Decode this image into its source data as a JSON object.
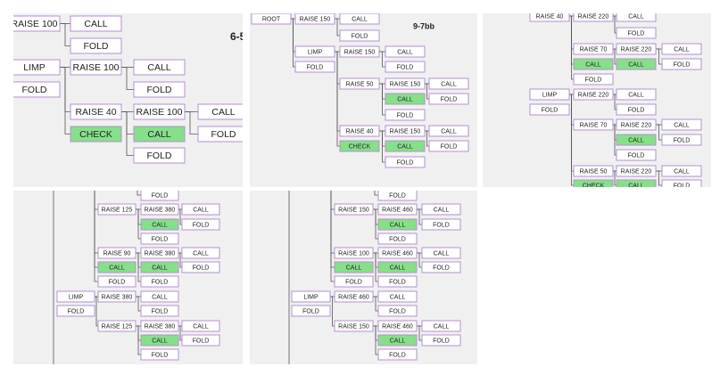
{
  "panels": [
    {
      "heading": "6-5",
      "nodes": [
        {
          "label": "RAISE 100"
        },
        {
          "label": "CALL"
        },
        {
          "label": "FOLD"
        },
        {
          "label": "LIMP"
        },
        {
          "label": "FOLD"
        },
        {
          "label": "RAISE 100"
        },
        {
          "label": "CALL"
        },
        {
          "label": "FOLD"
        },
        {
          "label": "RAISE 40"
        },
        {
          "label": "CHECK",
          "highlighted": true
        },
        {
          "label": "RAISE 100"
        },
        {
          "label": "CALL",
          "highlighted": true
        },
        {
          "label": "FOLD"
        },
        {
          "label": "CALL"
        },
        {
          "label": "FOLD"
        }
      ]
    },
    {
      "heading": "9-7bb",
      "nodes": [
        {
          "label": "ROOT"
        },
        {
          "label": "RAISE 150"
        },
        {
          "label": "CALL"
        },
        {
          "label": "FOLD"
        },
        {
          "label": "LIMP"
        },
        {
          "label": "FOLD"
        },
        {
          "label": "RAISE 150"
        },
        {
          "label": "CALL"
        },
        {
          "label": "FOLD"
        },
        {
          "label": "RAISE 50"
        },
        {
          "label": "RAISE 150"
        },
        {
          "label": "CALL"
        },
        {
          "label": "CALL",
          "highlighted": true
        },
        {
          "label": "FOLD"
        },
        {
          "label": "FOLD"
        },
        {
          "label": "RAISE 40"
        },
        {
          "label": "RAISE 150"
        },
        {
          "label": "CALL"
        },
        {
          "label": "FOLD"
        },
        {
          "label": "CHECK",
          "highlighted": true
        },
        {
          "label": "CALL",
          "highlighted": true
        },
        {
          "label": "FOLD"
        }
      ]
    },
    {
      "nodes": [
        {
          "label": "RAISE 40"
        },
        {
          "label": "RAISE 220"
        },
        {
          "label": "CALL"
        },
        {
          "label": "FOLD"
        },
        {
          "label": "RAISE 70"
        },
        {
          "label": "RAISE 220"
        },
        {
          "label": "CALL"
        },
        {
          "label": "CALL",
          "highlighted": true
        },
        {
          "label": "CALL",
          "highlighted": true
        },
        {
          "label": "FOLD"
        },
        {
          "label": "FOLD"
        },
        {
          "label": "LIMP"
        },
        {
          "label": "RAISE 220"
        },
        {
          "label": "CALL"
        },
        {
          "label": "FOLD"
        },
        {
          "label": "FOLD"
        },
        {
          "label": "RAISE 70"
        },
        {
          "label": "RAISE 220"
        },
        {
          "label": "CALL"
        },
        {
          "label": "CALL",
          "highlighted": true
        },
        {
          "label": "FOLD"
        },
        {
          "label": "FOLD"
        },
        {
          "label": "RAISE 50"
        },
        {
          "label": "RAISE 220"
        },
        {
          "label": "CALL"
        },
        {
          "label": "CHECK",
          "highlighted": true
        },
        {
          "label": "CALL",
          "highlighted": true
        },
        {
          "label": "FOLD"
        }
      ]
    },
    {
      "nodes": [
        {
          "label": "FOLD"
        },
        {
          "label": "RAISE 125"
        },
        {
          "label": "RAISE 380"
        },
        {
          "label": "CALL"
        },
        {
          "label": "CALL",
          "highlighted": true
        },
        {
          "label": "FOLD"
        },
        {
          "label": "FOLD"
        },
        {
          "label": "RAISE 90"
        },
        {
          "label": "RAISE 380"
        },
        {
          "label": "CALL"
        },
        {
          "label": "CALL",
          "highlighted": true
        },
        {
          "label": "CALL",
          "highlighted": true
        },
        {
          "label": "FOLD"
        },
        {
          "label": "FOLD"
        },
        {
          "label": "FOLD"
        },
        {
          "label": "LIMP"
        },
        {
          "label": "FOLD"
        },
        {
          "label": "RAISE 380"
        },
        {
          "label": "CALL"
        },
        {
          "label": "FOLD"
        },
        {
          "label": "RAISE 125"
        },
        {
          "label": "RAISE 380"
        },
        {
          "label": "CALL"
        },
        {
          "label": "CALL",
          "highlighted": true
        },
        {
          "label": "FOLD"
        },
        {
          "label": "FOLD"
        }
      ]
    },
    {
      "nodes": [
        {
          "label": "FOLD"
        },
        {
          "label": "RAISE 150"
        },
        {
          "label": "RAISE 460"
        },
        {
          "label": "CALL"
        },
        {
          "label": "CALL",
          "highlighted": true
        },
        {
          "label": "FOLD"
        },
        {
          "label": "FOLD"
        },
        {
          "label": "RAISE 100"
        },
        {
          "label": "RAISE 460"
        },
        {
          "label": "CALL"
        },
        {
          "label": "CALL",
          "highlighted": true
        },
        {
          "label": "CALL",
          "highlighted": true
        },
        {
          "label": "FOLD"
        },
        {
          "label": "FOLD"
        },
        {
          "label": "FOLD"
        },
        {
          "label": "LIMP"
        },
        {
          "label": "FOLD"
        },
        {
          "label": "RAISE 460"
        },
        {
          "label": "CALL"
        },
        {
          "label": "FOLD"
        },
        {
          "label": "RAISE 150"
        },
        {
          "label": "RAISE 460"
        },
        {
          "label": "CALL"
        },
        {
          "label": "CALL",
          "highlighted": true
        },
        {
          "label": "FOLD"
        },
        {
          "label": "FOLD"
        }
      ]
    }
  ]
}
